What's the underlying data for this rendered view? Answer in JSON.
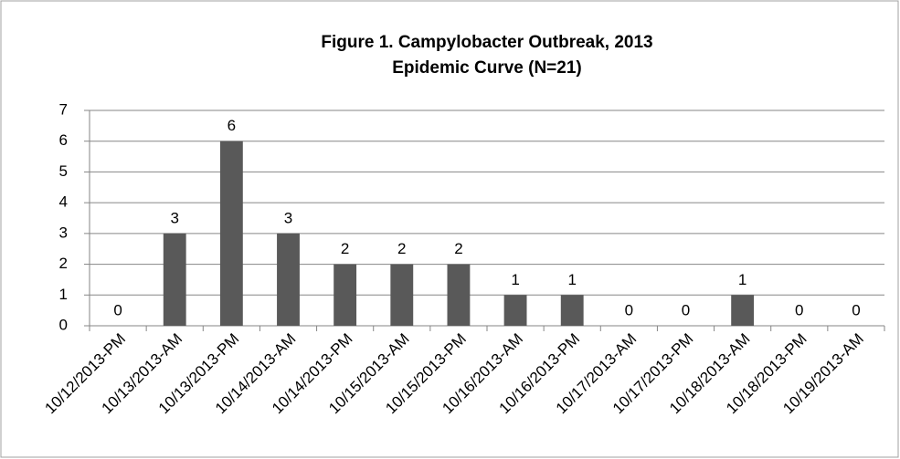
{
  "chart_data": {
    "type": "bar",
    "title": "Figure 1. Campylobacter Outbreak, 2013",
    "subtitle": "Epidemic Curve (N=21)",
    "categories": [
      "10/12/2013-PM",
      "10/13/2013-AM",
      "10/13/2013-PM",
      "10/14/2013-AM",
      "10/14/2013-PM",
      "10/15/2013-AM",
      "10/15/2013-PM",
      "10/16/2013-AM",
      "10/16/2013-PM",
      "10/17/2013-AM",
      "10/17/2013-PM",
      "10/18/2013-AM",
      "10/18/2013-PM",
      "10/19/2013-AM"
    ],
    "values": [
      0,
      3,
      6,
      3,
      2,
      2,
      2,
      1,
      1,
      0,
      0,
      1,
      0,
      0
    ],
    "color": "#595959",
    "ylim": [
      0,
      7
    ],
    "yticks": [
      0,
      1,
      2,
      3,
      4,
      5,
      6,
      7
    ],
    "grid": true
  }
}
